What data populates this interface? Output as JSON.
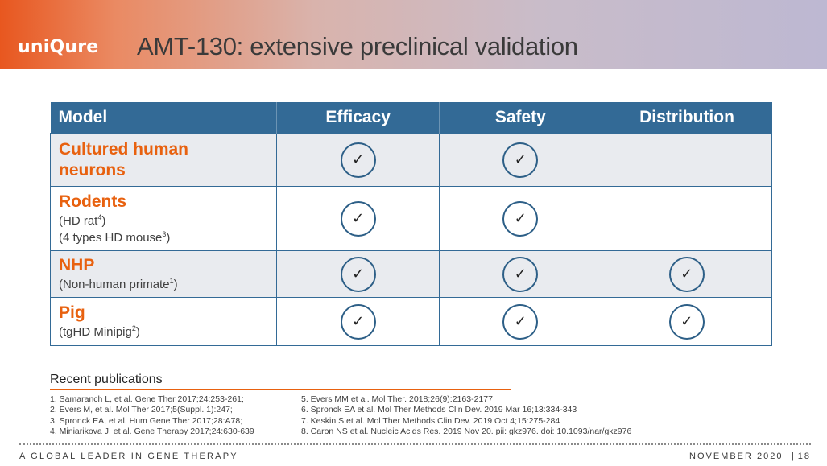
{
  "header": {
    "logo": "uniQure",
    "title": "AMT-130: extensive preclinical validation"
  },
  "table": {
    "columns": [
      "Model",
      "Efficacy",
      "Safety",
      "Distribution"
    ],
    "rows": [
      {
        "name": "Cultured human neurons",
        "sub": [],
        "efficacy": true,
        "safety": true,
        "distribution": false
      },
      {
        "name": "Rodents",
        "sub": [
          [
            "(HD rat",
            "4",
            ")"
          ],
          [
            "(4 types HD mouse",
            "3",
            ")"
          ]
        ],
        "efficacy": true,
        "safety": true,
        "distribution": false
      },
      {
        "name": "NHP",
        "sub": [
          [
            "(Non-human primate",
            "1",
            ")"
          ]
        ],
        "efficacy": true,
        "safety": true,
        "distribution": true
      },
      {
        "name": "Pig",
        "sub": [
          [
            "(tgHD Minipig",
            "2",
            ")"
          ]
        ],
        "efficacy": true,
        "safety": true,
        "distribution": true
      }
    ],
    "check_mark": "✓",
    "colors": {
      "header_bg": "#336a96",
      "model_name": "#e8610f",
      "alt_row_bg": "#e9ebef"
    }
  },
  "publications": {
    "heading": "Recent publications",
    "left": [
      "1. Samaranch L, et al. Gene Ther 2017;24:253-261;",
      "2. Evers M, et al. Mol Ther 2017;5(Suppl. 1):247;",
      "3. Spronck EA, et al. Hum Gene Ther 2017;28:A78;",
      "4. Miniarikova J, et al. Gene Therapy 2017;24:630-639"
    ],
    "right": [
      "5. Evers MM et al. Mol Ther. 2018;26(9):2163-2177",
      "6. Spronck EA et al. Mol Ther Methods Clin Dev. 2019 Mar 16;13:334-343",
      "7. Keskin S et al. Mol Ther Methods Clin Dev. 2019 Oct 4;15:275-284",
      "8. Caron NS et al. Nucleic Acids Res. 2019 Nov 20. pii: gkz976. doi: 10.1093/nar/gkz976"
    ]
  },
  "footer": {
    "tagline": "A GLOBAL LEADER IN GENE THERAPY",
    "date": "NOVEMBER 2020",
    "separator": "|",
    "page": "18"
  }
}
